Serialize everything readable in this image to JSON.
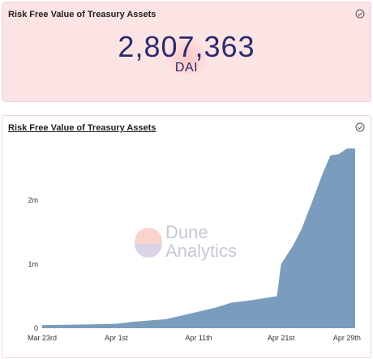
{
  "counter": {
    "title": "Risk Free Value of Treasury Assets",
    "value": "2,807,363",
    "unit": "DAI"
  },
  "chart_panel": {
    "title": "Risk Free Value of Treasury Assets",
    "watermark_line1": "Dune",
    "watermark_line2": "Analytics"
  },
  "colors": {
    "area_fill": "#7b9dbd",
    "counter_bg": "#fde4e4"
  },
  "chart_data": {
    "type": "area",
    "title": "Risk Free Value of Treasury Assets",
    "xlabel": "",
    "ylabel": "",
    "x_ticks": [
      "Mar 23rd",
      "Apr 1st",
      "Apr 11th",
      "Apr 21st",
      "Apr 29th"
    ],
    "x_tick_days": [
      0,
      9,
      19,
      29,
      37
    ],
    "y_ticks": [
      "0",
      "1m",
      "2m"
    ],
    "y_tick_values": [
      0,
      1000000,
      2000000
    ],
    "ylim": [
      0,
      3000000
    ],
    "xlim": [
      0,
      38
    ],
    "grid": false,
    "series": [
      {
        "x": [
          0,
          3,
          6,
          9,
          11,
          13,
          15,
          17,
          19,
          21,
          23,
          25,
          27,
          28.5,
          29,
          30.5,
          31.5,
          33,
          34,
          35,
          36,
          37,
          38
        ],
        "values": [
          50000,
          55000,
          60000,
          70000,
          100000,
          120000,
          140000,
          200000,
          260000,
          320000,
          400000,
          430000,
          470000,
          500000,
          1000000,
          1300000,
          1550000,
          2050000,
          2400000,
          2700000,
          2720000,
          2807363,
          2807363
        ]
      }
    ]
  }
}
